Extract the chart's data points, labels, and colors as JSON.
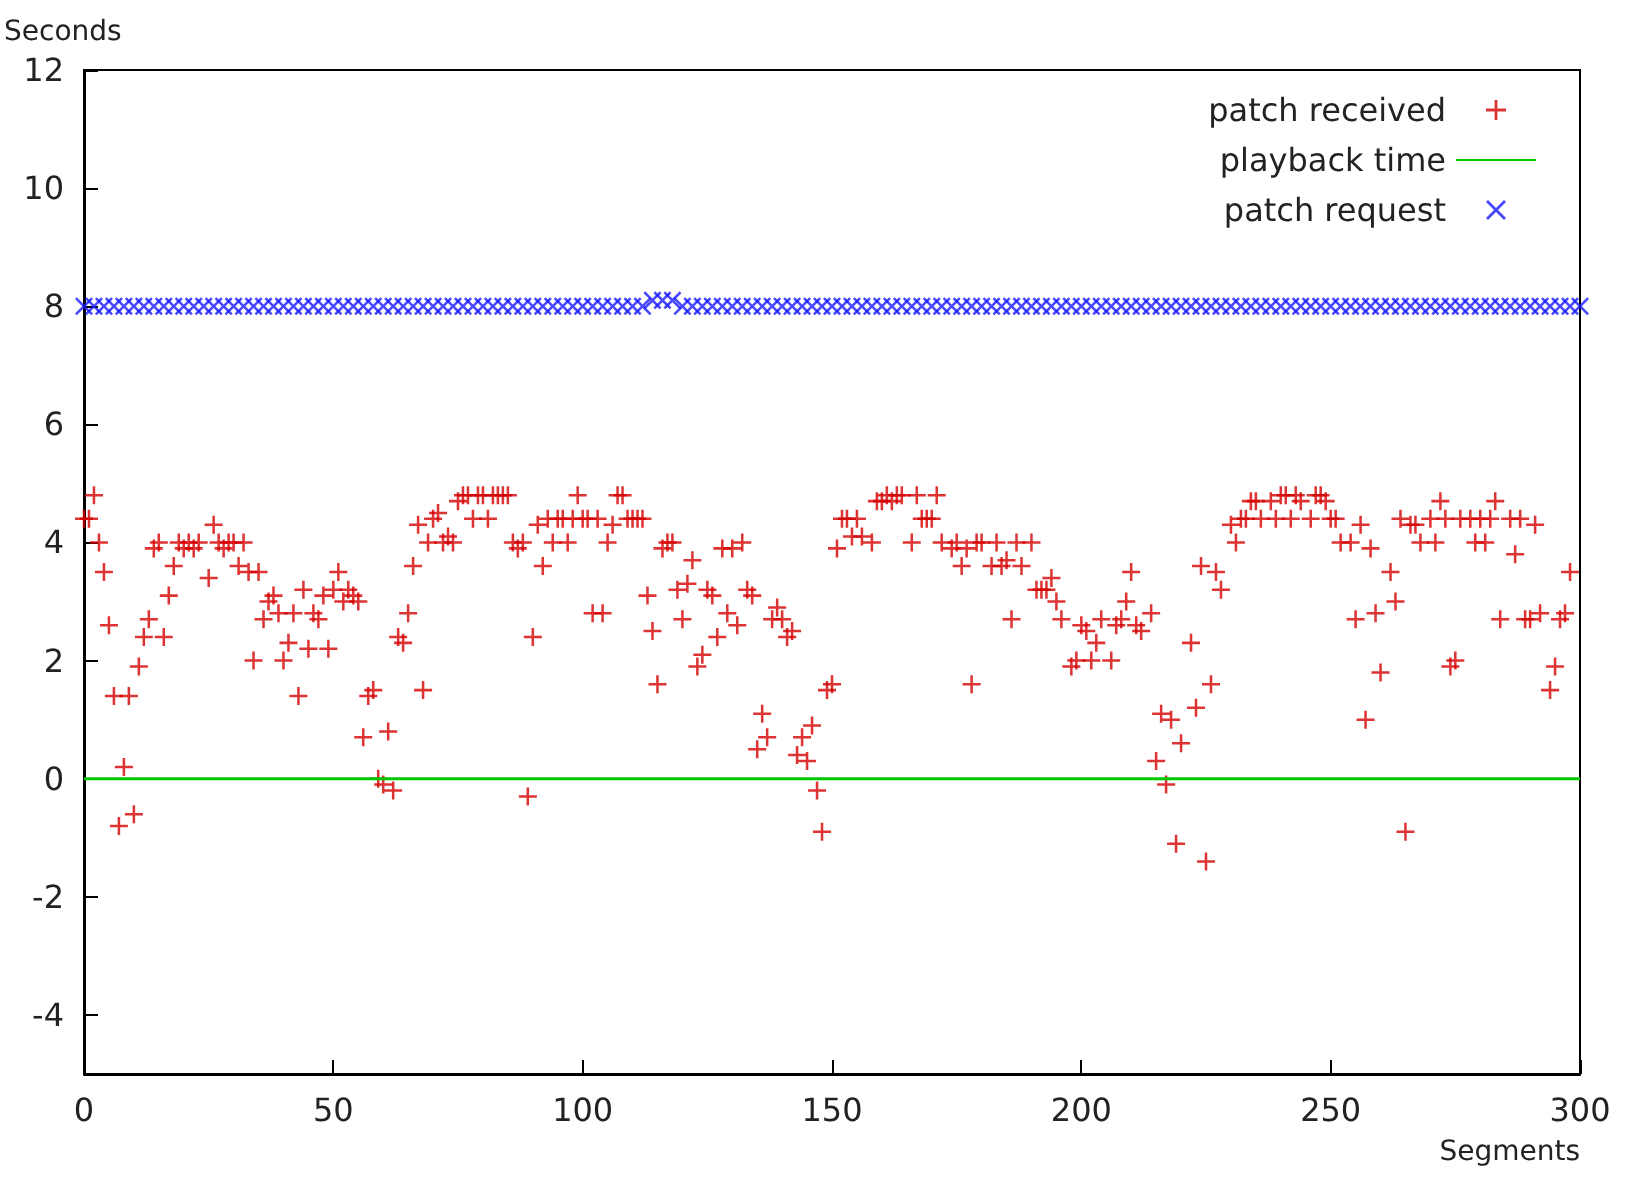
{
  "chart_data": {
    "type": "scatter",
    "ylabel": "Seconds",
    "xlabel": "Segments",
    "xlim": [
      0,
      300
    ],
    "xticks": [
      0,
      50,
      100,
      150,
      200,
      250,
      300
    ],
    "ylim": [
      -5,
      12
    ],
    "yticks": [
      -4,
      -2,
      0,
      2,
      4,
      6,
      8,
      10,
      12
    ],
    "grid": false,
    "legend": "top right",
    "series": [
      {
        "name": "patch received",
        "marker": "plus",
        "color": "#d40000",
        "x": [
          0,
          1,
          2,
          3,
          4,
          5,
          6,
          7,
          8,
          9,
          10,
          11,
          12,
          13,
          14,
          15,
          16,
          17,
          18,
          19,
          20,
          21,
          22,
          23,
          25,
          26,
          27,
          28,
          29,
          30,
          31,
          32,
          33,
          34,
          35,
          36,
          37,
          38,
          39,
          40,
          41,
          42,
          43,
          44,
          45,
          46,
          47,
          48,
          49,
          50,
          51,
          52,
          53,
          54,
          55,
          56,
          57,
          58,
          59,
          60,
          61,
          62,
          63,
          64,
          65,
          66,
          67,
          68,
          69,
          70,
          71,
          72,
          73,
          74,
          75,
          76,
          77,
          78,
          79,
          80,
          81,
          82,
          83,
          84,
          85,
          86,
          87,
          88,
          89,
          90,
          91,
          92,
          93,
          94,
          95,
          96,
          97,
          98,
          99,
          100,
          101,
          102,
          103,
          104,
          105,
          106,
          107,
          108,
          109,
          110,
          111,
          112,
          113,
          114,
          115,
          116,
          117,
          118,
          119,
          120,
          121,
          122,
          123,
          124,
          125,
          126,
          127,
          128,
          129,
          130,
          131,
          132,
          133,
          134,
          135,
          136,
          137,
          138,
          139,
          140,
          141,
          142,
          143,
          144,
          145,
          146,
          147,
          148,
          149,
          150,
          151,
          152,
          153,
          154,
          155,
          156,
          158,
          159,
          160,
          161,
          162,
          163,
          164,
          166,
          167,
          168,
          169,
          170,
          171,
          172,
          174,
          175,
          176,
          177,
          178,
          179,
          180,
          182,
          183,
          184,
          185,
          186,
          187,
          188,
          190,
          191,
          192,
          193,
          194,
          195,
          196,
          198,
          199,
          200,
          201,
          202,
          203,
          204,
          206,
          207,
          208,
          209,
          210,
          211,
          212,
          214,
          215,
          216,
          217,
          218,
          219,
          220,
          222,
          223,
          224,
          225,
          226,
          227,
          228,
          230,
          231,
          232,
          233,
          234,
          235,
          236,
          238,
          239,
          240,
          241,
          242,
          243,
          244,
          246,
          247,
          248,
          249,
          250,
          251,
          252,
          254,
          255,
          256,
          257,
          258,
          259,
          260,
          262,
          263,
          264,
          265,
          266,
          267,
          268,
          270,
          271,
          272,
          273,
          274,
          275,
          276,
          278,
          279,
          280,
          281,
          282,
          283,
          284,
          286,
          287,
          288,
          289,
          290,
          291,
          292,
          294,
          295,
          296,
          297,
          298
        ],
        "values": [
          4.4,
          4.4,
          4.8,
          4.0,
          3.5,
          2.6,
          1.4,
          -0.8,
          0.2,
          1.4,
          -0.6,
          1.9,
          2.4,
          2.7,
          3.9,
          4.0,
          2.4,
          3.1,
          3.6,
          4.0,
          3.9,
          4.0,
          3.9,
          4.0,
          3.4,
          4.3,
          4.0,
          3.9,
          4.0,
          4.0,
          3.6,
          4.0,
          3.5,
          2.0,
          3.5,
          2.7,
          3.0,
          3.1,
          2.8,
          2.0,
          2.3,
          2.8,
          1.4,
          3.2,
          2.2,
          2.8,
          2.7,
          3.1,
          2.2,
          3.2,
          3.5,
          3.0,
          3.2,
          3.1,
          3.0,
          0.7,
          1.4,
          1.5,
          0.0,
          -0.1,
          0.8,
          -0.2,
          2.4,
          2.3,
          2.8,
          3.6,
          4.3,
          1.5,
          4.0,
          4.4,
          4.5,
          4.0,
          4.1,
          4.0,
          4.7,
          4.8,
          4.8,
          4.4,
          4.8,
          4.8,
          4.4,
          4.8,
          4.8,
          4.8,
          4.8,
          4.0,
          3.9,
          4.0,
          -0.3,
          2.4,
          4.3,
          3.6,
          4.4,
          4.0,
          4.4,
          4.4,
          4.0,
          4.4,
          4.8,
          4.4,
          4.4,
          2.8,
          4.4,
          2.8,
          4.0,
          4.3,
          4.8,
          4.8,
          4.4,
          4.4,
          4.4,
          4.4,
          3.1,
          2.5,
          1.6,
          3.9,
          4.0,
          4.0,
          3.2,
          2.7,
          3.3,
          3.7,
          1.9,
          2.1,
          3.2,
          3.1,
          2.4,
          3.9,
          2.8,
          3.9,
          2.6,
          4.0,
          3.2,
          3.1,
          0.5,
          1.1,
          0.7,
          2.7,
          2.9,
          2.7,
          2.4,
          2.5,
          0.4,
          0.7,
          0.3,
          0.9,
          -0.2,
          -0.9,
          1.5,
          1.6,
          3.9,
          4.4,
          4.4,
          4.1,
          4.4,
          4.1,
          4.0,
          4.7,
          4.7,
          4.8,
          4.7,
          4.8,
          4.8,
          4.0,
          4.8,
          4.4,
          4.4,
          4.4,
          4.8,
          4.0,
          3.9,
          4.0,
          3.6,
          3.9,
          1.6,
          4.0,
          4.0,
          3.6,
          4.0,
          3.6,
          3.7,
          2.7,
          4.0,
          3.6,
          4.0,
          3.2,
          3.2,
          3.2,
          3.4,
          3.0,
          2.7,
          1.9,
          2.0,
          2.6,
          2.5,
          2.0,
          2.3,
          2.7,
          2.0,
          2.6,
          2.7,
          3.0,
          3.5,
          2.6,
          2.5,
          2.8,
          0.3,
          1.1,
          -0.1,
          1.0,
          -1.1,
          0.6,
          2.3,
          1.2,
          3.6,
          -1.4,
          1.6,
          3.5,
          3.2,
          4.3,
          4.0,
          4.4,
          4.4,
          4.7,
          4.7,
          4.4,
          4.7,
          4.4,
          4.8,
          4.8,
          4.4,
          4.8,
          4.7,
          4.4,
          4.8,
          4.8,
          4.7,
          4.4,
          4.4,
          4.0,
          4.0,
          2.7,
          4.3,
          1.0,
          3.9,
          2.8,
          1.8,
          3.5,
          3.0,
          4.4,
          -0.9,
          4.3,
          4.3,
          4.0,
          4.4,
          4.0,
          4.7,
          4.4,
          1.9,
          2.0,
          4.4,
          4.4,
          4.0,
          4.4,
          4.0,
          4.4,
          4.7,
          2.7,
          4.4,
          3.8,
          4.4,
          2.7,
          2.7,
          4.3,
          2.8,
          1.5,
          1.9,
          2.7,
          2.8,
          3.5
        ]
      },
      {
        "name": "playback time",
        "type": "line",
        "marker": "none",
        "color": "#00c800",
        "x": [
          0,
          300
        ],
        "values": [
          0,
          0
        ]
      },
      {
        "name": "patch request",
        "marker": "cross",
        "color": "#1a1aff",
        "x": [
          0,
          2,
          4,
          6,
          8,
          10,
          12,
          14,
          16,
          18,
          20,
          22,
          24,
          26,
          28,
          30,
          32,
          34,
          36,
          38,
          40,
          42,
          44,
          46,
          48,
          50,
          52,
          54,
          56,
          58,
          60,
          62,
          64,
          66,
          68,
          70,
          72,
          74,
          76,
          78,
          80,
          82,
          84,
          86,
          88,
          90,
          92,
          94,
          96,
          98,
          100,
          102,
          104,
          106,
          108,
          110,
          112,
          114,
          116,
          118,
          120,
          122,
          124,
          126,
          128,
          130,
          132,
          134,
          136,
          138,
          140,
          142,
          144,
          146,
          148,
          150,
          152,
          154,
          156,
          158,
          160,
          162,
          164,
          166,
          168,
          170,
          172,
          174,
          176,
          178,
          180,
          182,
          184,
          186,
          188,
          190,
          192,
          194,
          196,
          198,
          200,
          202,
          204,
          206,
          208,
          210,
          212,
          214,
          216,
          218,
          220,
          222,
          224,
          226,
          228,
          230,
          232,
          234,
          236,
          238,
          240,
          242,
          244,
          246,
          248,
          250,
          252,
          254,
          256,
          258,
          260,
          262,
          264,
          266,
          268,
          270,
          272,
          274,
          276,
          278,
          280,
          282,
          284,
          286,
          288,
          290,
          292,
          294,
          296,
          298,
          300
        ],
        "values": [
          8,
          8,
          8,
          8,
          8,
          8,
          8,
          8,
          8,
          8,
          8,
          8,
          8,
          8,
          8,
          8,
          8,
          8,
          8,
          8,
          8,
          8,
          8,
          8,
          8,
          8,
          8,
          8,
          8,
          8,
          8,
          8,
          8,
          8,
          8,
          8,
          8,
          8,
          8,
          8,
          8,
          8,
          8,
          8,
          8,
          8,
          8,
          8,
          8,
          8,
          8,
          8,
          8,
          8,
          8,
          8,
          8,
          8.1,
          8.1,
          8.1,
          8,
          8,
          8,
          8,
          8,
          8,
          8,
          8,
          8,
          8,
          8,
          8,
          8,
          8,
          8,
          8,
          8,
          8,
          8,
          8,
          8,
          8,
          8,
          8,
          8,
          8,
          8,
          8,
          8,
          8,
          8,
          8,
          8,
          8,
          8,
          8,
          8,
          8,
          8,
          8,
          8,
          8,
          8,
          8,
          8,
          8,
          8,
          8,
          8,
          8,
          8,
          8,
          8,
          8,
          8,
          8,
          8,
          8,
          8,
          8,
          8,
          8,
          8,
          8,
          8,
          8,
          8,
          8,
          8,
          8,
          8,
          8,
          8,
          8,
          8,
          8,
          8,
          8,
          8,
          8,
          8,
          8,
          8,
          8,
          8,
          8,
          8,
          8,
          8,
          8,
          8
        ]
      }
    ]
  }
}
